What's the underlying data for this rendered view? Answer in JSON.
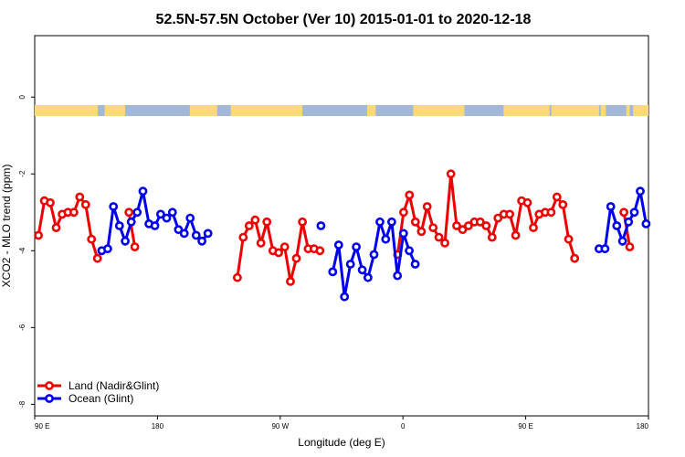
{
  "chart_data": {
    "type": "line",
    "title": "52.5N-57.5N October (Ver 10)   2015-01-01 to 2020-12-18",
    "xlabel": "Longitude (deg E)",
    "ylabel": "XCO2 - MLO trend (ppm)",
    "xlim": [
      90,
      450
    ],
    "ylim": [
      -8.3,
      1.6
    ],
    "x_ticks": [
      {
        "value": 90,
        "label": "90 E"
      },
      {
        "value": 162,
        "label": "180"
      },
      {
        "value": 234,
        "label": "90 W"
      },
      {
        "value": 306,
        "label": "0"
      },
      {
        "value": 378,
        "label": "90 E"
      },
      {
        "value": 450,
        "label": "180"
      }
    ],
    "y_ticks": [
      {
        "value": 0,
        "label": "0"
      },
      {
        "value": -2,
        "label": "-2"
      },
      {
        "value": -4,
        "label": "-4"
      },
      {
        "value": -6,
        "label": "-6"
      },
      {
        "value": -8,
        "label": "-8"
      }
    ],
    "land_ocean_strip": {
      "y_center": -0.35,
      "land_color": "#fdd877",
      "ocean_color": "#a3b7d9",
      "ocean_segments": [
        [
          127,
          131
        ],
        [
          143,
          181
        ],
        [
          197,
          205
        ],
        [
          247,
          285
        ],
        [
          290,
          312
        ],
        [
          342,
          365
        ],
        [
          392,
          393
        ],
        [
          421,
          422
        ],
        [
          425,
          437
        ],
        [
          439,
          441
        ]
      ]
    },
    "series": [
      {
        "name": "Land (Nadir&Glint)",
        "color": "#ee0000",
        "segments": [
          {
            "x": [
              92.2,
              95.7,
              99.1,
              102.6,
              106.1,
              109.5,
              113.0,
              116.4,
              119.9,
              123.3,
              126.8
            ],
            "y": [
              -3.6,
              -2.7,
              -2.75,
              -3.4,
              -3.05,
              -3.0,
              -3.0,
              -2.6,
              -2.8,
              -3.7,
              -4.2
            ]
          },
          {
            "x": [
              145.3,
              148.7
            ],
            "y": [
              -3.0,
              -3.9
            ]
          },
          {
            "x": [
              208.9,
              212.3,
              215.8,
              219.3,
              222.7,
              226.2,
              229.7,
              233.1,
              236.6,
              240.0,
              243.5,
              247.0,
              250.4,
              253.9,
              257.3,
              260.8,
              264.3
            ],
            "y": [
              -4.7,
              -3.65,
              -3.35,
              -3.2,
              -3.8,
              -3.25,
              -4.0,
              -4.05,
              -3.9,
              -4.8,
              -4.2,
              -3.25,
              -3.95,
              -3.95,
              -4.0,
              null,
              null
            ]
          },
          {
            "x": [
              302.9,
              306.4,
              309.8,
              313.3,
              316.8,
              320.2,
              323.7,
              327.1,
              330.6,
              334.1,
              337.5,
              341.0,
              344.4,
              347.9,
              351.3,
              354.8,
              358.3,
              361.7,
              365.2,
              368.6,
              372.1,
              375.6,
              379.0,
              382.5,
              385.9,
              389.4,
              392.9,
              396.3,
              399.8,
              403.2,
              406.7,
              410.2,
              413.6,
              417.1,
              420.5
            ],
            "y": [
              -4.1,
              -3.0,
              -2.55,
              -3.25,
              -3.5,
              -2.85,
              -3.4,
              -3.65,
              -3.8,
              -2.0,
              -3.35,
              -3.45,
              -3.35,
              -3.25,
              -3.25,
              -3.35,
              -3.65,
              -3.15,
              -3.05,
              -3.05,
              -3.6,
              -2.7,
              -2.75,
              -3.4,
              -3.05,
              -3.0,
              -3.0,
              -2.6,
              -2.8,
              -3.7,
              -4.2,
              null,
              null,
              null,
              null
            ]
          },
          {
            "x": [
              435.6,
              439.0
            ],
            "y": [
              -3.0,
              -3.9
            ]
          }
        ]
      },
      {
        "name": "Ocean (Glint)",
        "color": "#0000ee",
        "segments": [
          {
            "x": [
              129.3,
              132.8,
              136.2,
              139.7,
              143.1,
              146.6,
              150.1,
              153.5,
              157.0,
              160.5,
              163.9,
              167.4,
              170.8,
              174.3,
              177.7,
              181.2,
              184.7,
              188.1,
              191.6,
              195.1,
              198.5,
              201.9
            ],
            "y": [
              -4.0,
              -3.95,
              -2.85,
              -3.35,
              -3.75,
              -3.25,
              -3.0,
              -2.45,
              -3.3,
              -3.35,
              -3.05,
              -3.15,
              -3.0,
              -3.45,
              -3.55,
              -3.15,
              -3.6,
              -3.75,
              -3.55,
              null,
              null,
              null
            ]
          },
          {
            "x": [
              257.9,
              261.4,
              264.8,
              268.3,
              271.7,
              275.2,
              278.6,
              282.1,
              285.5,
              289.0,
              292.5,
              295.9,
              299.4,
              302.8,
              306.3,
              309.7,
              313.2
            ],
            "y": [
              -3.35,
              null,
              -4.55,
              -3.85,
              -5.2,
              -4.35,
              -3.9,
              -4.5,
              -4.7,
              -4.1,
              -3.25,
              -3.7,
              -3.25,
              -4.65,
              -3.55,
              -4.0,
              -4.35
            ]
          },
          {
            "x": [
              421.0,
              424.5,
              427.9,
              431.4,
              434.8,
              438.3,
              441.7,
              445.2,
              448.6
            ],
            "y": [
              -3.95,
              -3.95,
              -2.85,
              -3.35,
              -3.75,
              -3.25,
              -3.0,
              -2.45,
              -3.3
            ]
          }
        ]
      }
    ],
    "legend": {
      "position": "bottom-left",
      "entries": [
        "Land (Nadir&Glint)",
        "Ocean (Glint)"
      ]
    }
  }
}
